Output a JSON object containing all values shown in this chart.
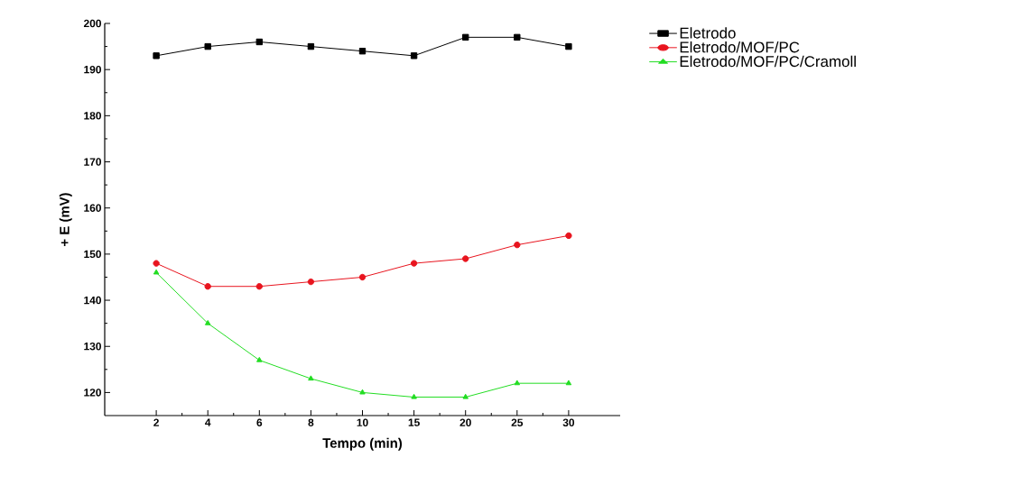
{
  "chart_data": {
    "type": "line",
    "xlabel": "Tempo (min)",
    "ylabel": "+ E (mV)",
    "categories": [
      "2",
      "4",
      "6",
      "8",
      "10",
      "15",
      "20",
      "25",
      "30"
    ],
    "ylim": [
      115,
      200
    ],
    "yticks": [
      120,
      130,
      140,
      150,
      160,
      170,
      180,
      190,
      200
    ],
    "grid": false,
    "legend": "top right",
    "line_style": "solid",
    "series": [
      {
        "name": "Eletrodo",
        "color": "#000000",
        "marker": "square",
        "values": [
          193,
          195,
          196,
          195,
          194,
          193,
          197,
          197,
          195
        ]
      },
      {
        "name": "Eletrodo/MOF/PC",
        "color": "#e8141e",
        "marker": "circle",
        "values": [
          148,
          143,
          143,
          144,
          145,
          148,
          149,
          152,
          154
        ]
      },
      {
        "name": "Eletrodo/MOF/PC/Cramoll",
        "color": "#22dd22",
        "marker": "triangle",
        "values": [
          146,
          135,
          127,
          123,
          120,
          119,
          119,
          122,
          122
        ]
      }
    ]
  }
}
